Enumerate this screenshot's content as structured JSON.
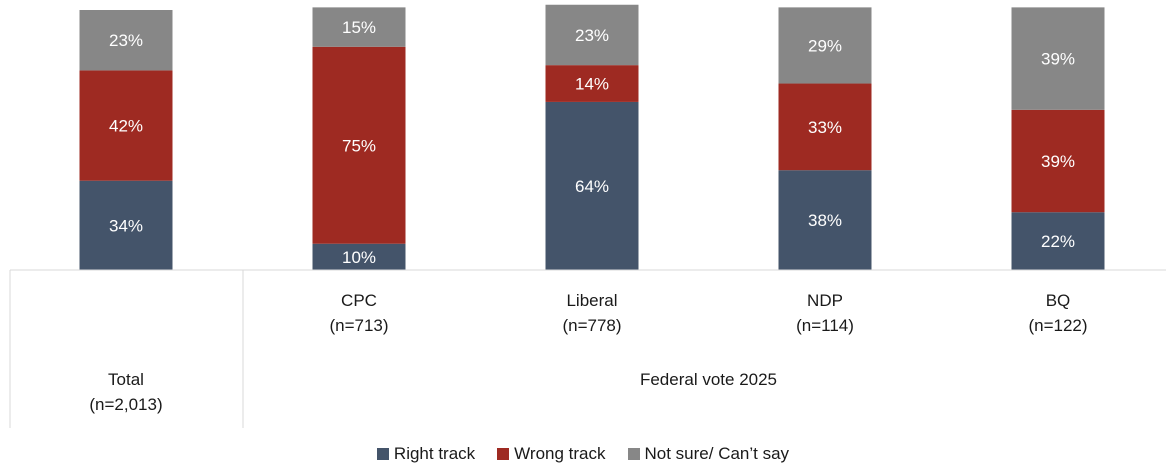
{
  "chart_data": {
    "type": "bar",
    "stacked": true,
    "categories": [
      "Total\n(n=2,013)",
      "CPC\n(n=713)",
      "Liberal\n(n=778)",
      "NDP\n(n=114)",
      "BQ\n(n=122)"
    ],
    "group_label": "Federal vote 2025",
    "series": [
      {
        "name": "Right track",
        "color": "#44546a",
        "values": [
          34,
          10,
          64,
          38,
          22
        ]
      },
      {
        "name": "Wrong track",
        "color": "#9e2a22",
        "values": [
          42,
          75,
          14,
          33,
          39
        ]
      },
      {
        "name": "Not sure/ Can’t say",
        "color": "#878787",
        "values": [
          23,
          15,
          23,
          29,
          39
        ]
      }
    ],
    "value_suffix": "%",
    "ylim": [
      0,
      100
    ],
    "legend_position": "bottom"
  }
}
